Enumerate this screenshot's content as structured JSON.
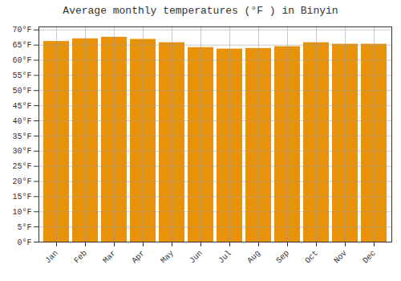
{
  "chart_data": {
    "type": "bar",
    "title": "Average monthly temperatures (°F ) in Binyin",
    "categories": [
      "Jan",
      "Feb",
      "Mar",
      "Apr",
      "May",
      "Jun",
      "Jul",
      "Aug",
      "Sep",
      "Oct",
      "Nov",
      "Dec"
    ],
    "values": [
      66.2,
      67.1,
      67.6,
      66.9,
      65.8,
      64.2,
      63.7,
      63.9,
      64.5,
      65.8,
      65.3,
      65.3
    ],
    "color": "#E8920A",
    "ylim": [
      0,
      71
    ],
    "yticks": [
      {
        "value": 0,
        "label": "0°F"
      },
      {
        "value": 5,
        "label": "5°F"
      },
      {
        "value": 10,
        "label": "10°F"
      },
      {
        "value": 15,
        "label": "15°F"
      },
      {
        "value": 20,
        "label": "20°F"
      },
      {
        "value": 25,
        "label": "25°F"
      },
      {
        "value": 30,
        "label": "30°F"
      },
      {
        "value": 35,
        "label": "35°F"
      },
      {
        "value": 40,
        "label": "40°F"
      },
      {
        "value": 45,
        "label": "45°F"
      },
      {
        "value": 50,
        "label": "50°F"
      },
      {
        "value": 55,
        "label": "55°F"
      },
      {
        "value": 60,
        "label": "60°F"
      },
      {
        "value": 65,
        "label": "65°F"
      },
      {
        "value": 70,
        "label": "70°F"
      }
    ],
    "grid": true
  }
}
